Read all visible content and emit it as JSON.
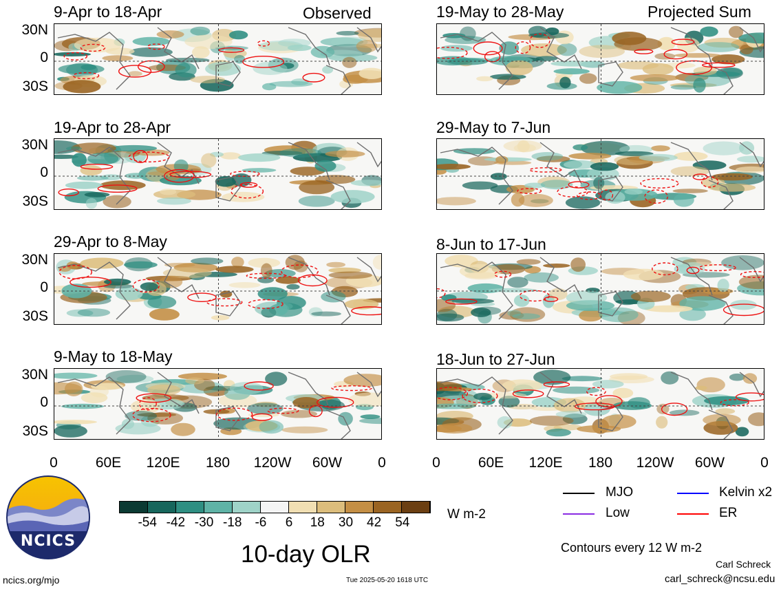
{
  "columns": {
    "left_label": "Observed",
    "right_label": "Projected Sum"
  },
  "panels_left": [
    {
      "title": "9-Apr to 18-Apr"
    },
    {
      "title": "19-Apr to 28-Apr"
    },
    {
      "title": "29-Apr to 8-May"
    },
    {
      "title": "9-May to 18-May"
    }
  ],
  "panels_right": [
    {
      "title": "19-May to 28-May"
    },
    {
      "title": "29-May to 7-Jun"
    },
    {
      "title": "8-Jun to 17-Jun"
    },
    {
      "title": "18-Jun to 27-Jun"
    }
  ],
  "lat_labels": [
    "30N",
    "0",
    "30S"
  ],
  "lon_labels": [
    "0",
    "60E",
    "120E",
    "180",
    "120W",
    "60W",
    "0"
  ],
  "colorbar": {
    "labels": [
      "-54",
      "-42",
      "-30",
      "-18",
      "-6",
      "6",
      "18",
      "30",
      "42",
      "54"
    ],
    "colors": [
      "#0b3a33",
      "#17665c",
      "#2f8f82",
      "#5fb3a6",
      "#9fd3c8",
      "#f4f4f4",
      "#f1dfb3",
      "#dcbd7c",
      "#c48f45",
      "#9a6422",
      "#6b3f12"
    ],
    "units": "W m-2"
  },
  "legend": {
    "items": [
      {
        "label": "MJO",
        "color": "#000000"
      },
      {
        "label": "Kelvin x2",
        "color": "#0000ff"
      },
      {
        "label": "Low",
        "color": "#8a2be2"
      },
      {
        "label": "ER",
        "color": "#ff0000"
      }
    ],
    "contour_note": "Contours every 12 W m-2"
  },
  "main_title": "10-day OLR",
  "logo_text": "NCICS",
  "footer": {
    "url": "ncics.org/mjo",
    "timestamp": "Tue 2025-05-20 1618 UTC",
    "author": "Carl Schreck",
    "email": "carl_schreck@ncsu.edu"
  }
}
